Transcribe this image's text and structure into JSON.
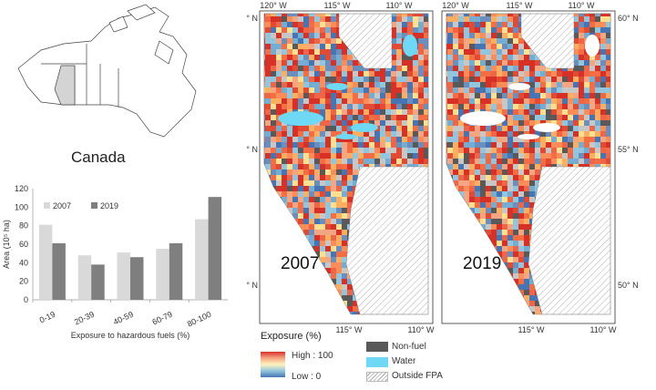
{
  "canada_map": {
    "label": "Canada"
  },
  "chart_data": {
    "type": "bar",
    "categories": [
      "0-19",
      "20-39",
      "40-59",
      "60-79",
      "80-100"
    ],
    "series": [
      {
        "name": "2007",
        "values": [
          81,
          48,
          51,
          55,
          87
        ],
        "color": "#d9d9d9"
      },
      {
        "name": "2019",
        "values": [
          61,
          38,
          46,
          61,
          111
        ],
        "color": "#7f7f7f"
      }
    ],
    "xlabel": "Exposure to hazardous fuels (%)",
    "ylabel": "Area (10⁵ ha)",
    "ylim": [
      0,
      120
    ],
    "yticks": [
      "0",
      "20",
      "40",
      "60",
      "80",
      "100",
      "120"
    ],
    "grid": false,
    "legend": "top-left"
  },
  "maps": [
    {
      "year": "2007"
    },
    {
      "year": "2019"
    }
  ],
  "axes": {
    "top_lon": [
      "120° W",
      "115° W",
      "110° W"
    ],
    "bottom_lon": [
      "115° W",
      "110° W"
    ],
    "lat": [
      "60° N",
      "55° N",
      "50° N"
    ]
  },
  "legend": {
    "title": "Exposure (%)",
    "high": "High : 100",
    "low": "Low : 0",
    "items": [
      {
        "label": "Non-fuel",
        "color": "#595959"
      },
      {
        "label": "Water",
        "color": "#6fd9f5"
      },
      {
        "label": "Outside FPA",
        "color": "hatch"
      }
    ]
  }
}
